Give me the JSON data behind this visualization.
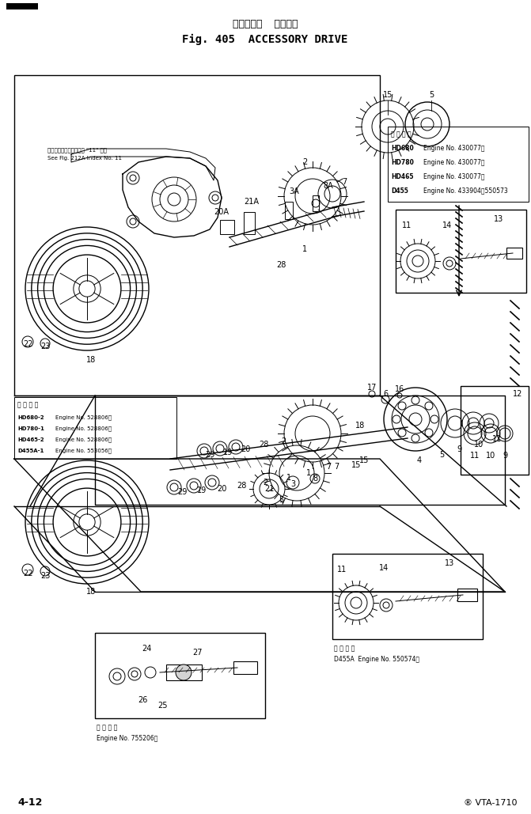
{
  "title_japanese": "アクセサリ  ドライブ",
  "title_english": "Fig. 405  ACCESSORY DRIVE",
  "page_number": "4-12",
  "model_text": "® VTA-1710",
  "background_color": "#ffffff",
  "line_color": "#000000",
  "fig_width": 6.71,
  "fig_height": 10.29,
  "dpi": 100
}
